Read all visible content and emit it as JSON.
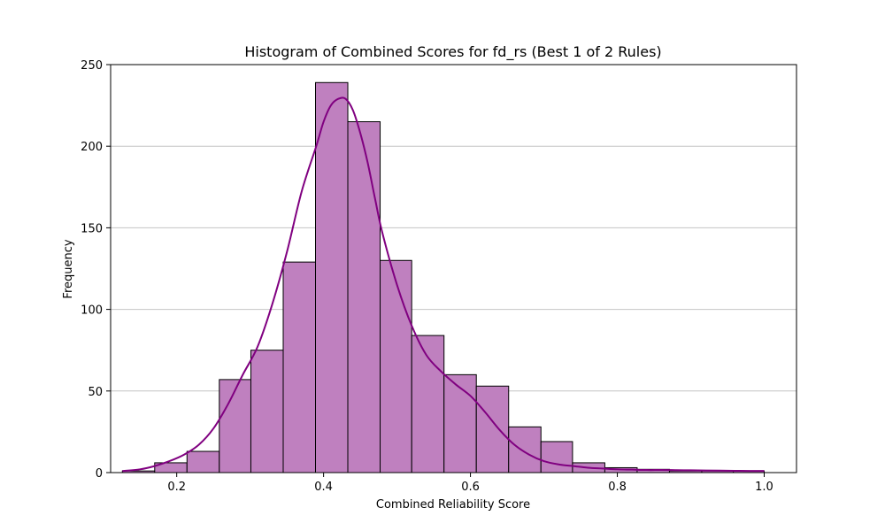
{
  "chart_data": {
    "type": "bar",
    "subtype": "histogram",
    "title": "Histogram of Combined Scores for fd_rs (Best 1 of 2 Rules)",
    "xlabel": "Combined Reliability Score",
    "ylabel": "Frequency",
    "xlim": [
      0.11,
      1.044
    ],
    "ylim": [
      0,
      250
    ],
    "xticks": [
      0.2,
      0.4,
      0.6,
      0.8,
      1.0
    ],
    "xtick_labels": [
      "0.2",
      "0.4",
      "0.6",
      "0.8",
      "1.0"
    ],
    "yticks": [
      0,
      50,
      100,
      150,
      200,
      250
    ],
    "ytick_labels": [
      "0",
      "50",
      "100",
      "150",
      "200",
      "250"
    ],
    "grid": "horizontal",
    "bins": [
      {
        "x0": 0.126,
        "x1": 0.17,
        "value": 1
      },
      {
        "x0": 0.17,
        "x1": 0.214,
        "value": 6
      },
      {
        "x0": 0.214,
        "x1": 0.258,
        "value": 13
      },
      {
        "x0": 0.258,
        "x1": 0.301,
        "value": 57
      },
      {
        "x0": 0.301,
        "x1": 0.345,
        "value": 75
      },
      {
        "x0": 0.345,
        "x1": 0.389,
        "value": 129
      },
      {
        "x0": 0.389,
        "x1": 0.433,
        "value": 239
      },
      {
        "x0": 0.433,
        "x1": 0.477,
        "value": 215
      },
      {
        "x0": 0.477,
        "x1": 0.52,
        "value": 130
      },
      {
        "x0": 0.52,
        "x1": 0.564,
        "value": 84
      },
      {
        "x0": 0.564,
        "x1": 0.608,
        "value": 60
      },
      {
        "x0": 0.608,
        "x1": 0.652,
        "value": 53
      },
      {
        "x0": 0.652,
        "x1": 0.696,
        "value": 28
      },
      {
        "x0": 0.696,
        "x1": 0.739,
        "value": 19
      },
      {
        "x0": 0.739,
        "x1": 0.783,
        "value": 6
      },
      {
        "x0": 0.783,
        "x1": 0.827,
        "value": 3
      },
      {
        "x0": 0.827,
        "x1": 0.871,
        "value": 2
      },
      {
        "x0": 0.871,
        "x1": 0.915,
        "value": 1
      },
      {
        "x0": 0.915,
        "x1": 0.958,
        "value": 1
      },
      {
        "x0": 0.958,
        "x1": 1.0,
        "value": 1
      }
    ],
    "kde": {
      "x": [
        0.126,
        0.15,
        0.17,
        0.19,
        0.21,
        0.23,
        0.25,
        0.27,
        0.29,
        0.31,
        0.33,
        0.35,
        0.37,
        0.39,
        0.4,
        0.41,
        0.42,
        0.43,
        0.44,
        0.45,
        0.46,
        0.47,
        0.48,
        0.5,
        0.52,
        0.54,
        0.56,
        0.58,
        0.6,
        0.62,
        0.64,
        0.66,
        0.68,
        0.7,
        0.72,
        0.74,
        0.76,
        0.78,
        0.8,
        0.82,
        0.84,
        0.86,
        0.88,
        0.9,
        0.92,
        0.94,
        0.96,
        0.98,
        1.0
      ],
      "y": [
        1,
        2,
        4,
        7,
        11,
        17,
        27,
        42,
        60,
        77,
        103,
        135,
        172,
        200,
        215,
        225,
        229,
        229,
        222,
        208,
        190,
        168,
        147,
        115,
        90,
        72,
        62,
        54,
        47,
        37,
        26,
        17,
        11,
        7,
        5,
        4,
        3,
        2.5,
        2,
        1.8,
        1.6,
        1.6,
        1.5,
        1.4,
        1.3,
        1.2,
        1.1,
        1,
        1
      ]
    },
    "colors": {
      "bar_fill": "#bf80bf",
      "bar_edge": "#000000",
      "kde_line": "#800080",
      "grid": "#c4c4c4"
    }
  }
}
